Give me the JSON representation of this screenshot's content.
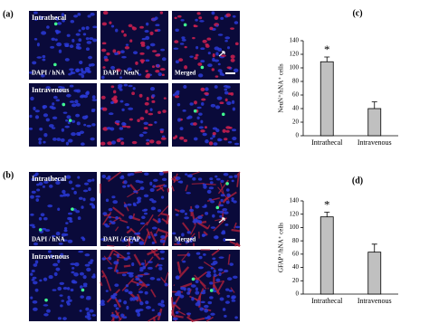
{
  "figure": {
    "panels": [
      {
        "label": "(a)",
        "rows": [
          {
            "title": "Intrathecal",
            "captions": [
              "DAPI / hNA",
              "DAPI / NeuN",
              "Merged"
            ]
          },
          {
            "title": "Intravenous"
          }
        ]
      },
      {
        "label": "(b)",
        "rows": [
          {
            "title": "Intrathecal",
            "captions": [
              "DAPI / hNA",
              "DAPI / GFAP",
              "Merged"
            ]
          },
          {
            "title": "Intravenous"
          }
        ]
      }
    ]
  },
  "chart_data": [
    {
      "type": "bar",
      "label": "(c)",
      "ylabel": "NeuN⁺/hNA⁺ cells",
      "annotation": "*",
      "categories": [
        "Intrathecal",
        "Intravenous"
      ],
      "values": [
        109,
        40
      ],
      "errors": [
        7,
        10
      ],
      "color": "#c0c0c0",
      "ylim": [
        0,
        140
      ],
      "yticks": [
        0,
        20,
        40,
        60,
        80,
        100,
        120,
        140
      ]
    },
    {
      "type": "bar",
      "label": "(d)",
      "ylabel": "GFAP⁺/hNA⁺ cells",
      "annotation": "*",
      "categories": [
        "Intrathecal",
        "Intravenous"
      ],
      "values": [
        116,
        63
      ],
      "errors": [
        7,
        12
      ],
      "color": "#c0c0c0",
      "ylim": [
        0,
        140
      ],
      "yticks": [
        0,
        20,
        40,
        60,
        80,
        100,
        120,
        140
      ]
    }
  ]
}
